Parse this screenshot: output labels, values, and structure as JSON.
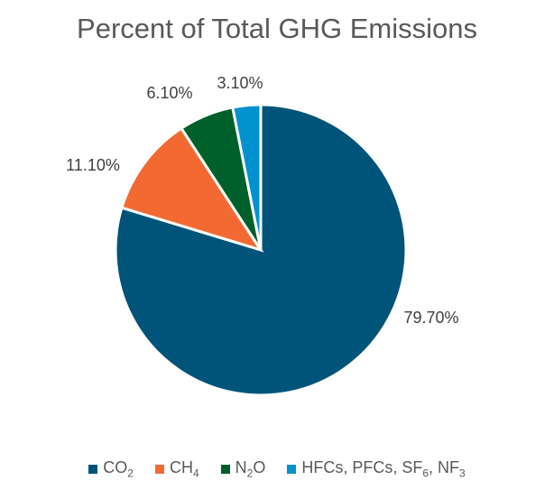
{
  "chart_data": {
    "type": "pie",
    "title": "Percent of Total GHG Emissions",
    "start_angle": "12 o'clock, clockwise",
    "legend_position": "bottom",
    "slices": [
      {
        "name": "CO2",
        "label": "79.70%",
        "value": 79.7,
        "color": "#005479",
        "legend": [
          {
            "t": "CO"
          },
          {
            "s": "2"
          }
        ]
      },
      {
        "name": "CH4",
        "label": "11.10%",
        "value": 11.1,
        "color": "#F26A32",
        "legend": [
          {
            "t": "CH"
          },
          {
            "s": "4"
          }
        ]
      },
      {
        "name": "N2O",
        "label": "6.10%",
        "value": 6.1,
        "color": "#00602B",
        "legend": [
          {
            "t": "N"
          },
          {
            "s": "2"
          },
          {
            "t": "O"
          }
        ]
      },
      {
        "name": "HFCs, PFCs, SF6, NF3",
        "label": "3.10%",
        "value": 3.1,
        "color": "#0092CF",
        "legend": [
          {
            "t": "HFCs, PFCs, SF"
          },
          {
            "s": "6"
          },
          {
            "t": ", NF"
          },
          {
            "s": "3"
          }
        ]
      }
    ]
  }
}
